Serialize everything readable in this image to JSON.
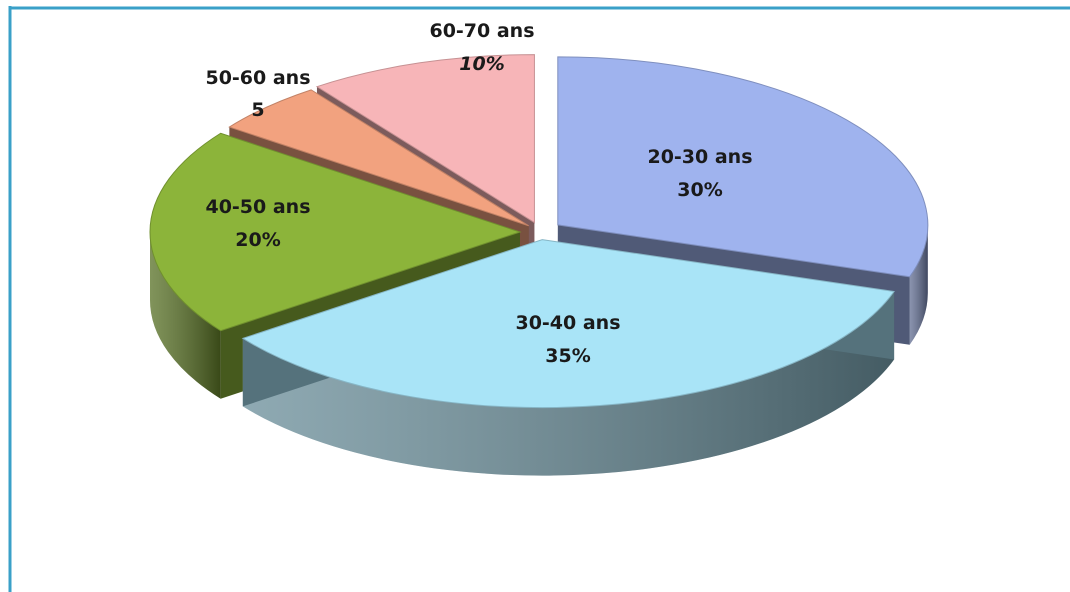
{
  "chart_data": {
    "type": "pie",
    "style": "3d-exploded",
    "legend": "none",
    "slices": [
      {
        "label": "20-30 ans",
        "value_label": "30%",
        "value": 30,
        "color": "#9fb3ee"
      },
      {
        "label": "30-40 ans",
        "value_label": "35%",
        "value": 35,
        "color": "#a9e4f7"
      },
      {
        "label": "40-50 ans",
        "value_label": "20%",
        "value": 20,
        "color": "#8cb43a"
      },
      {
        "label": "50-60 ans",
        "value_label": "5",
        "value": 5,
        "color": "#f2a27f"
      },
      {
        "label": "60-70 ans",
        "value_label": "10%",
        "value": 10,
        "color": "#f7b5b8"
      }
    ]
  }
}
